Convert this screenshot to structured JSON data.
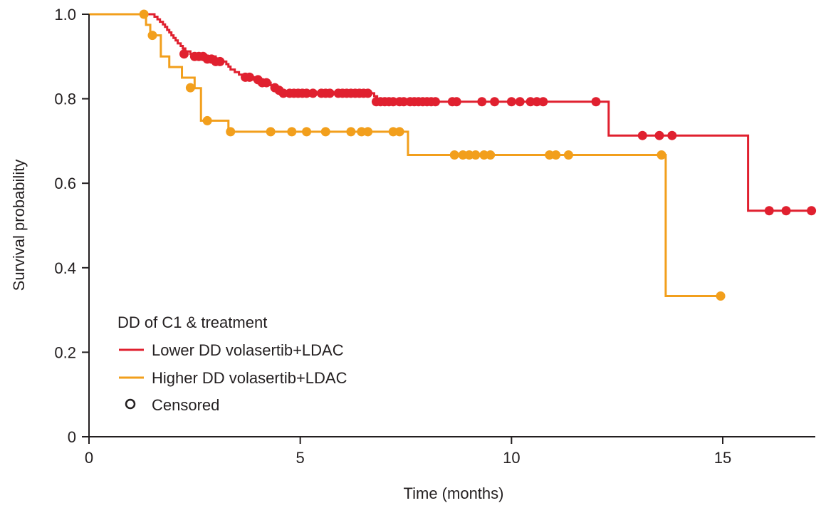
{
  "chart_data": {
    "type": "line",
    "subtype": "kaplan-meier",
    "xlabel": "Time (months)",
    "ylabel": "Survival probability",
    "xlim": [
      0,
      17.2
    ],
    "ylim": [
      0,
      1.0
    ],
    "x_ticks": [
      0,
      5,
      10,
      15
    ],
    "y_ticks": [
      0,
      0.2,
      0.4,
      0.6,
      0.8,
      1.0
    ],
    "y_tick_labels": [
      "0",
      "0.2",
      "0.4",
      "0.6",
      "0.8",
      "1.0"
    ],
    "grid": false,
    "legend": {
      "title": "DD of C1 & treatment",
      "placement": "bottom-left",
      "censored_label": "Censored"
    },
    "series": [
      {
        "name": "Lower DD volasertib+LDAC",
        "color": "#e0202f",
        "steps": [
          [
            0,
            1.0
          ],
          [
            1.55,
            0.994
          ],
          [
            1.62,
            0.988
          ],
          [
            1.68,
            0.982
          ],
          [
            1.75,
            0.976
          ],
          [
            1.8,
            0.97
          ],
          [
            1.85,
            0.963
          ],
          [
            1.9,
            0.957
          ],
          [
            1.95,
            0.95
          ],
          [
            2.0,
            0.944
          ],
          [
            2.05,
            0.938
          ],
          [
            2.1,
            0.931
          ],
          [
            2.17,
            0.925
          ],
          [
            2.22,
            0.919
          ],
          [
            2.28,
            0.912
          ],
          [
            2.4,
            0.906
          ],
          [
            2.55,
            0.9
          ],
          [
            3.0,
            0.894
          ],
          [
            3.15,
            0.888
          ],
          [
            3.25,
            0.882
          ],
          [
            3.3,
            0.876
          ],
          [
            3.35,
            0.869
          ],
          [
            3.45,
            0.863
          ],
          [
            3.55,
            0.857
          ],
          [
            3.65,
            0.851
          ],
          [
            3.9,
            0.845
          ],
          [
            4.0,
            0.838
          ],
          [
            4.3,
            0.832
          ],
          [
            4.38,
            0.826
          ],
          [
            4.45,
            0.82
          ],
          [
            4.55,
            0.813
          ],
          [
            6.75,
            0.806
          ],
          [
            6.82,
            0.8
          ],
          [
            6.87,
            0.793
          ],
          [
            12.3,
            0.713
          ],
          [
            15.6,
            0.535
          ]
        ],
        "censored": [
          [
            2.25,
            0.906
          ],
          [
            2.5,
            0.9
          ],
          [
            2.6,
            0.9
          ],
          [
            2.7,
            0.9
          ],
          [
            2.8,
            0.894
          ],
          [
            2.9,
            0.894
          ],
          [
            3.0,
            0.888
          ],
          [
            3.1,
            0.888
          ],
          [
            3.7,
            0.851
          ],
          [
            3.8,
            0.851
          ],
          [
            4.0,
            0.845
          ],
          [
            4.1,
            0.838
          ],
          [
            4.2,
            0.838
          ],
          [
            4.4,
            0.826
          ],
          [
            4.5,
            0.82
          ],
          [
            4.6,
            0.813
          ],
          [
            4.75,
            0.813
          ],
          [
            4.85,
            0.813
          ],
          [
            4.95,
            0.813
          ],
          [
            5.05,
            0.813
          ],
          [
            5.15,
            0.813
          ],
          [
            5.3,
            0.813
          ],
          [
            5.5,
            0.813
          ],
          [
            5.6,
            0.813
          ],
          [
            5.7,
            0.813
          ],
          [
            5.9,
            0.813
          ],
          [
            6.0,
            0.813
          ],
          [
            6.1,
            0.813
          ],
          [
            6.2,
            0.813
          ],
          [
            6.3,
            0.813
          ],
          [
            6.4,
            0.813
          ],
          [
            6.5,
            0.813
          ],
          [
            6.6,
            0.813
          ],
          [
            6.8,
            0.793
          ],
          [
            6.9,
            0.793
          ],
          [
            7.0,
            0.793
          ],
          [
            7.1,
            0.793
          ],
          [
            7.2,
            0.793
          ],
          [
            7.35,
            0.793
          ],
          [
            7.45,
            0.793
          ],
          [
            7.6,
            0.793
          ],
          [
            7.7,
            0.793
          ],
          [
            7.8,
            0.793
          ],
          [
            7.9,
            0.793
          ],
          [
            8.0,
            0.793
          ],
          [
            8.1,
            0.793
          ],
          [
            8.2,
            0.793
          ],
          [
            8.6,
            0.793
          ],
          [
            8.7,
            0.793
          ],
          [
            9.3,
            0.793
          ],
          [
            9.6,
            0.793
          ],
          [
            10.0,
            0.793
          ],
          [
            10.2,
            0.793
          ],
          [
            10.45,
            0.793
          ],
          [
            10.6,
            0.793
          ],
          [
            10.75,
            0.793
          ],
          [
            12.0,
            0.793
          ],
          [
            13.1,
            0.713
          ],
          [
            13.5,
            0.713
          ],
          [
            13.8,
            0.713
          ],
          [
            16.1,
            0.535
          ],
          [
            16.5,
            0.535
          ],
          [
            17.1,
            0.535
          ]
        ]
      },
      {
        "name": "Higher DD volasertib+LDAC",
        "color": "#f29f1c",
        "steps": [
          [
            0,
            1.0
          ],
          [
            1.35,
            0.975
          ],
          [
            1.45,
            0.95
          ],
          [
            1.7,
            0.9
          ],
          [
            1.9,
            0.875
          ],
          [
            2.2,
            0.85
          ],
          [
            2.5,
            0.825
          ],
          [
            2.65,
            0.748
          ],
          [
            3.3,
            0.722
          ],
          [
            7.55,
            0.667
          ],
          [
            13.65,
            0.333
          ]
        ],
        "censored": [
          [
            1.3,
            1.0
          ],
          [
            1.5,
            0.95
          ],
          [
            2.4,
            0.826
          ],
          [
            2.8,
            0.748
          ],
          [
            3.35,
            0.722
          ],
          [
            4.3,
            0.722
          ],
          [
            4.8,
            0.722
          ],
          [
            5.15,
            0.722
          ],
          [
            5.6,
            0.722
          ],
          [
            6.2,
            0.722
          ],
          [
            6.45,
            0.722
          ],
          [
            6.6,
            0.722
          ],
          [
            7.2,
            0.722
          ],
          [
            7.35,
            0.722
          ],
          [
            8.65,
            0.667
          ],
          [
            8.85,
            0.667
          ],
          [
            9.0,
            0.667
          ],
          [
            9.15,
            0.667
          ],
          [
            9.35,
            0.667
          ],
          [
            9.5,
            0.667
          ],
          [
            10.9,
            0.667
          ],
          [
            11.05,
            0.667
          ],
          [
            11.35,
            0.667
          ],
          [
            13.55,
            0.667
          ],
          [
            14.95,
            0.333
          ]
        ]
      }
    ]
  }
}
